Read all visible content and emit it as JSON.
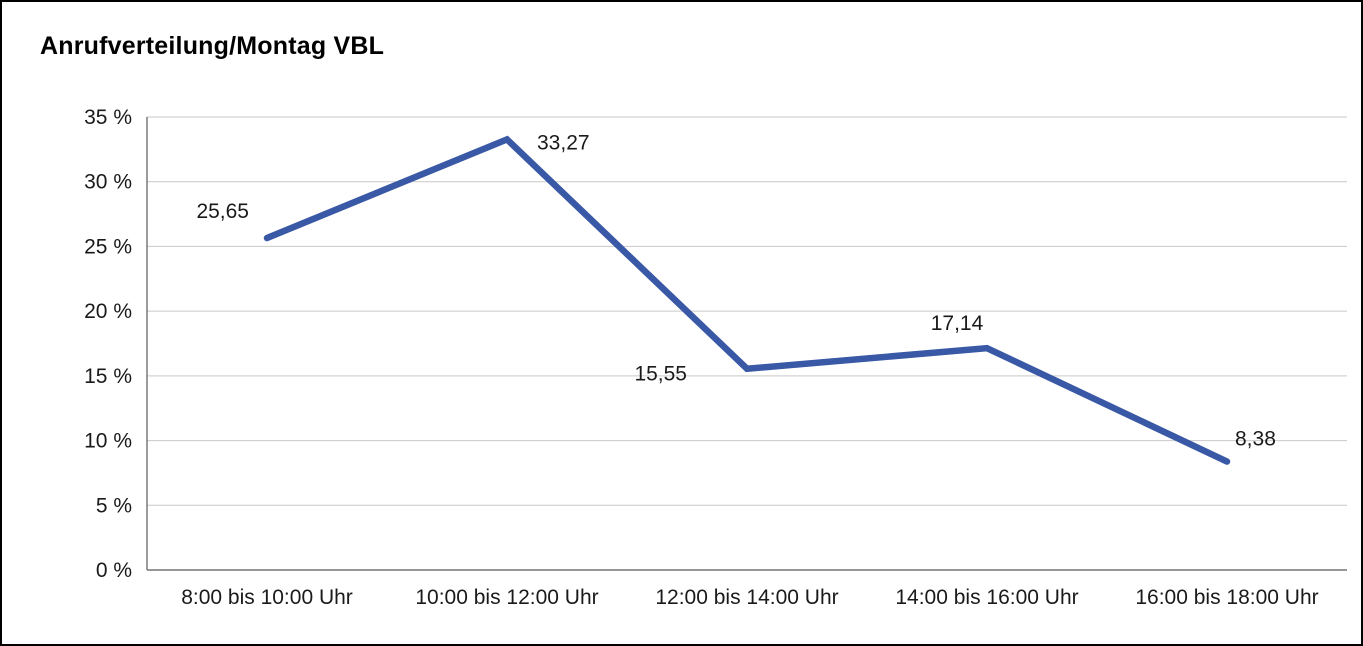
{
  "chart_data": {
    "type": "line",
    "title": "Anrufverteilung/Montag VBL",
    "categories": [
      "8:00 bis 10:00 Uhr",
      "10:00 bis 12:00 Uhr",
      "12:00 bis 14:00 Uhr",
      "14:00 bis 16:00 Uhr",
      "16:00 bis 18:00 Uhr"
    ],
    "values": [
      25.65,
      33.27,
      15.55,
      17.14,
      8.38
    ],
    "point_labels": [
      "25,65",
      "33,27",
      "15,55",
      "17,14",
      "8,38"
    ],
    "xlabel": "",
    "ylabel": "",
    "ylim": [
      0,
      35
    ],
    "ytick_step": 5,
    "ytick_labels": [
      "0 %",
      "5 %",
      "10 %",
      "15 %",
      "20 %",
      "25 %",
      "30 %",
      "35 %"
    ],
    "grid": true,
    "legend": "none",
    "line_color": "#3958A5",
    "grid_color": "#c9c9c9",
    "axis_color": "#595959",
    "text_color": "#1a1a1a"
  }
}
